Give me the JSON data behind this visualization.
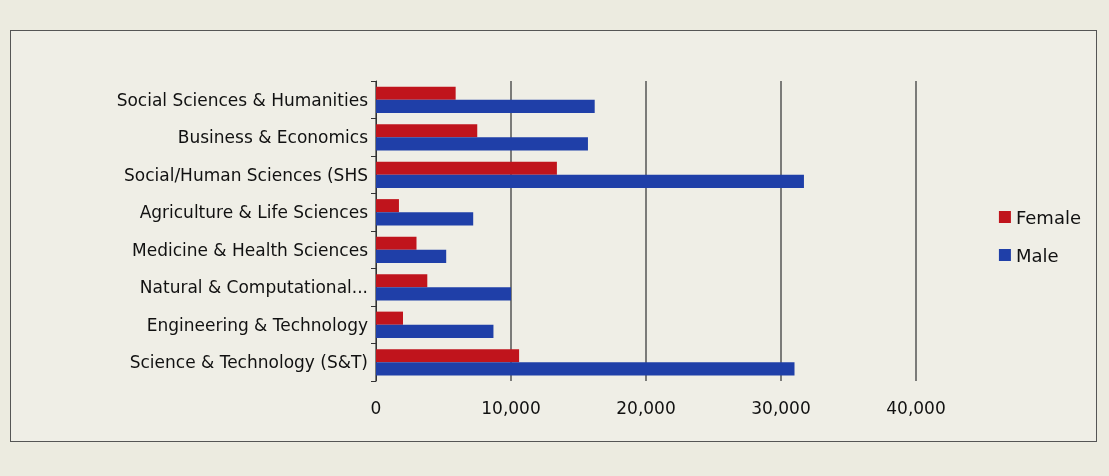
{
  "chart_data": {
    "type": "bar",
    "orientation": "horizontal",
    "categories": [
      "Social Sciences & Humanities",
      "Business & Economics",
      "Social/Human Sciences (SHS",
      "Agriculture & Life Sciences",
      "Medicine & Health Sciences",
      "Natural & Computational...",
      "Engineering & Technology",
      "Science & Technology (S&T)"
    ],
    "series": [
      {
        "name": "Female",
        "color": "#c0141c",
        "values": [
          5900,
          7500,
          13400,
          1700,
          3000,
          3800,
          2000,
          10600
        ]
      },
      {
        "name": "Male",
        "color": "#1f3fa8",
        "values": [
          16200,
          15700,
          31700,
          7200,
          5200,
          10000,
          8700,
          31000
        ]
      }
    ],
    "xlim": [
      0,
      40000
    ],
    "xticks": [
      0,
      {
        "value": 10000,
        "label": "10,000"
      },
      {
        "value": 20000,
        "label": "20,000"
      },
      {
        "value": 30000,
        "label": "30,000"
      },
      {
        "value": 40000,
        "label": "40,000"
      }
    ],
    "grid": "x",
    "legend": "right"
  }
}
